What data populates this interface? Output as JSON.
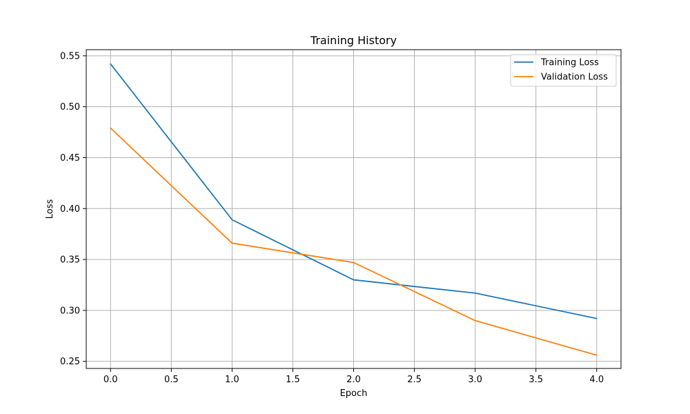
{
  "chart_data": {
    "type": "line",
    "title": "Training History",
    "xlabel": "Epoch",
    "ylabel": "Loss",
    "x": [
      0,
      1,
      2,
      3,
      4
    ],
    "xlim": [
      -0.2,
      4.2
    ],
    "ylim": [
      0.243,
      0.556
    ],
    "xticks": [
      "0.0",
      "0.5",
      "1.0",
      "1.5",
      "2.0",
      "2.5",
      "3.0",
      "3.5",
      "4.0"
    ],
    "yticks": [
      "0.25",
      "0.30",
      "0.35",
      "0.40",
      "0.45",
      "0.50",
      "0.55"
    ],
    "grid": true,
    "legend_position": "top-right",
    "series": [
      {
        "name": "Training Loss",
        "color": "#1f77b4",
        "values": [
          0.542,
          0.389,
          0.33,
          0.317,
          0.292
        ]
      },
      {
        "name": "Validation Loss",
        "color": "#ff7f0e",
        "values": [
          0.479,
          0.366,
          0.347,
          0.29,
          0.256
        ]
      }
    ]
  }
}
